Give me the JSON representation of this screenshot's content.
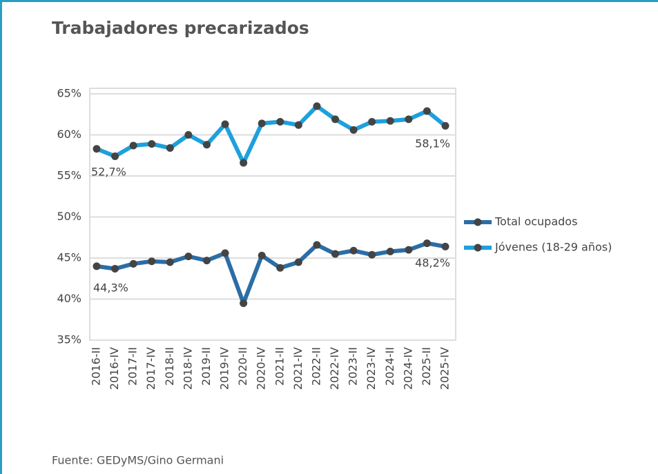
{
  "chart_data": {
    "type": "line",
    "title": "Trabajadores precarizados",
    "source": "Fuente: GEDyMS/Gino Germani",
    "categories": [
      "2016-II",
      "2016-IV",
      "2017-II",
      "2017-IV",
      "2018-II",
      "2018-IV",
      "2019-II",
      "2019-IV",
      "2020-II",
      "2020-IV",
      "2021-II",
      "2021-IV",
      "2022-II",
      "2022-IV",
      "2023-II",
      "2023-IV",
      "2024-II",
      "2024-IV",
      "2025-II",
      "2025-IV"
    ],
    "series": [
      {
        "name": "Total ocupados",
        "color": "#2b6ea6",
        "values": [
          44.0,
          43.7,
          44.3,
          44.6,
          44.5,
          45.2,
          44.7,
          45.6,
          39.5,
          45.3,
          43.8,
          44.5,
          46.6,
          45.5,
          45.9,
          45.4,
          45.8,
          46.0,
          46.8,
          46.4
        ]
      },
      {
        "name": "Jóvenes (18-29 años)",
        "color": "#1ea0dc",
        "values": [
          58.3,
          57.4,
          58.7,
          58.9,
          58.4,
          60.0,
          58.8,
          61.3,
          56.6,
          61.4,
          61.6,
          61.2,
          63.5,
          61.9,
          60.6,
          61.6,
          61.7,
          61.9,
          62.9,
          61.1
        ]
      }
    ],
    "annotations": [
      "52,7%",
      "58,1%",
      "44,3%",
      "48,2%"
    ],
    "ylim": [
      35,
      65
    ],
    "yticks": [
      {
        "value": 35,
        "label": "35%"
      },
      {
        "value": 40,
        "label": "40%"
      },
      {
        "value": 45,
        "label": "45%"
      },
      {
        "value": 50,
        "label": "50%"
      },
      {
        "value": 55,
        "label": "55%"
      },
      {
        "value": 60,
        "label": "60%"
      },
      {
        "value": 65,
        "label": "65%"
      }
    ],
    "grid": true,
    "legend": "right"
  }
}
